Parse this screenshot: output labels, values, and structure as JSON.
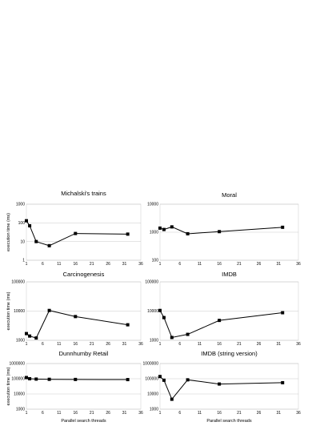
{
  "chart_data": [
    {
      "type": "line",
      "title": "Michalski's trains",
      "xlabel": "",
      "ylabel": "execution time (ms)",
      "yscale": "log",
      "xlim": [
        1,
        36
      ],
      "ylim": [
        1,
        1000
      ],
      "xticks": [
        1,
        6,
        11,
        16,
        21,
        26,
        31,
        36
      ],
      "yticks": [
        1,
        10,
        100,
        1000
      ],
      "x": [
        1,
        2,
        4,
        8,
        16,
        32
      ],
      "y": [
        130,
        70,
        10,
        6,
        27,
        25
      ]
    },
    {
      "type": "line",
      "title": "Moral",
      "xlabel": "",
      "ylabel": "",
      "yscale": "log",
      "xlim": [
        1,
        36
      ],
      "ylim": [
        100,
        10000
      ],
      "xticks": [
        1,
        6,
        11,
        16,
        21,
        26,
        31,
        36
      ],
      "yticks": [
        100,
        1000,
        10000
      ],
      "x": [
        1,
        2,
        4,
        8,
        16,
        32
      ],
      "y": [
        1400,
        1250,
        1550,
        880,
        1050,
        1500
      ]
    },
    {
      "type": "line",
      "title": "Carcinogenesis",
      "xlabel": "",
      "ylabel": "execution time (ms)",
      "yscale": "log",
      "xlim": [
        1,
        36
      ],
      "ylim": [
        1000,
        100000
      ],
      "xticks": [
        1,
        6,
        11,
        16,
        21,
        26,
        31,
        36
      ],
      "yticks": [
        1000,
        10000,
        100000
      ],
      "x": [
        1,
        2,
        4,
        8,
        16,
        32
      ],
      "y": [
        1700,
        1400,
        1200,
        10500,
        6500,
        3400
      ]
    },
    {
      "type": "line",
      "title": "IMDB",
      "xlabel": "",
      "ylabel": "",
      "yscale": "log",
      "xlim": [
        1,
        36
      ],
      "ylim": [
        1000,
        100000
      ],
      "xticks": [
        1,
        6,
        11,
        16,
        21,
        26,
        31,
        36
      ],
      "yticks": [
        1000,
        10000,
        100000
      ],
      "x": [
        1,
        2,
        4,
        8,
        16,
        32
      ],
      "y": [
        10500,
        6000,
        1250,
        1600,
        4800,
        8800
      ]
    },
    {
      "type": "line",
      "title": "Dunnhumby Retail",
      "xlabel": "Parallel search threads",
      "ylabel": "execution time (ms)",
      "yscale": "log",
      "xlim": [
        1,
        36
      ],
      "ylim": [
        1000,
        1000000
      ],
      "xticks": [
        1,
        6,
        11,
        16,
        21,
        26,
        31,
        36
      ],
      "yticks": [
        1000,
        10000,
        100000,
        1000000
      ],
      "x": [
        1,
        2,
        4,
        8,
        16,
        32
      ],
      "y": [
        120000,
        100000,
        95000,
        92000,
        90000,
        88000
      ]
    },
    {
      "type": "line",
      "title": "IMDB (string version)",
      "xlabel": "Parallel search threads",
      "ylabel": "",
      "yscale": "log",
      "xlim": [
        1,
        36
      ],
      "ylim": [
        1000,
        1000000
      ],
      "xticks": [
        1,
        6,
        11,
        16,
        21,
        26,
        31,
        36
      ],
      "yticks": [
        1000,
        10000,
        100000,
        1000000
      ],
      "x": [
        1,
        2,
        4,
        8,
        16,
        32
      ],
      "y": [
        140000,
        80000,
        4500,
        85000,
        45000,
        55000
      ]
    }
  ]
}
